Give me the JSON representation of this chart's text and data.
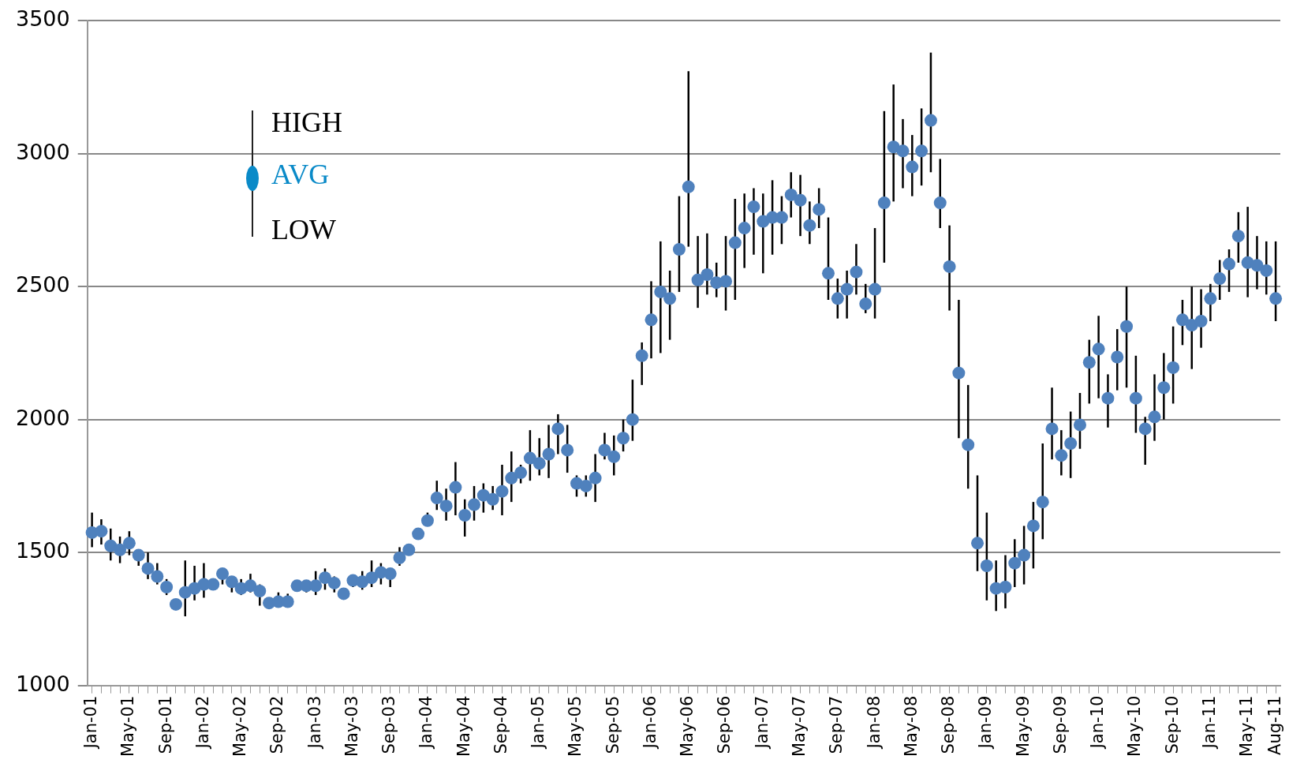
{
  "chart_data": {
    "type": "scatter",
    "categories": [
      "Jan-01",
      null,
      null,
      null,
      "May-01",
      null,
      null,
      null,
      "Sep-01",
      null,
      null,
      null,
      "Jan-02",
      null,
      null,
      null,
      "May-02",
      null,
      null,
      null,
      "Sep-02",
      null,
      null,
      null,
      "Jan-03",
      null,
      null,
      null,
      "May-03",
      null,
      null,
      null,
      "Sep-03",
      null,
      null,
      null,
      "Jan-04",
      null,
      null,
      null,
      "May-04",
      null,
      null,
      null,
      "Sep-04",
      null,
      null,
      null,
      "Jan-05",
      null,
      null,
      null,
      "May-05",
      null,
      null,
      null,
      "Sep-05",
      null,
      null,
      null,
      "Jan-06",
      null,
      null,
      null,
      "May-06",
      null,
      null,
      null,
      "Sep-06",
      null,
      null,
      null,
      "Jan-07",
      null,
      null,
      null,
      "May-07",
      null,
      null,
      null,
      "Sep-07",
      null,
      null,
      null,
      "Jan-08",
      null,
      null,
      null,
      "May-08",
      null,
      null,
      null,
      "Sep-08",
      null,
      null,
      null,
      "Jan-09",
      null,
      null,
      null,
      "May-09",
      null,
      null,
      null,
      "Sep-09",
      null,
      null,
      null,
      "Jan-10",
      null,
      null,
      null,
      "May-10",
      null,
      null,
      null,
      "Sep-10",
      null,
      null,
      null,
      "Jan-11",
      null,
      null,
      null,
      "May-11",
      null,
      null,
      "Aug-11"
    ],
    "series": [
      {
        "color": "#4f81bd",
        "values": [
          1575,
          1580,
          1525,
          1510,
          1535,
          1490,
          1440,
          1410,
          1370,
          1305,
          1350,
          1365,
          1380,
          1380,
          1420,
          1390,
          1365,
          1375,
          1355,
          1310,
          1315,
          1315,
          1375,
          1375,
          1375,
          1405,
          1385,
          1345,
          1395,
          1390,
          1405,
          1425,
          1420,
          1480,
          1510,
          1570,
          1620,
          1705,
          1675,
          1745,
          1640,
          1680,
          1715,
          1700,
          1730,
          1780,
          1800,
          1855,
          1835,
          1870,
          1965,
          1885,
          1760,
          1750,
          1780,
          1885,
          1860,
          1930,
          2000,
          2240,
          2375,
          2480,
          2455,
          2640,
          2875,
          2525,
          2545,
          2515,
          2520,
          2665,
          2720,
          2800,
          2745,
          2760,
          2760,
          2845,
          2825,
          2730,
          2790,
          2550,
          2455,
          2490,
          2555,
          2435,
          2490,
          2815,
          3025,
          3010,
          2950,
          3010,
          3125,
          2815,
          2575,
          2175,
          1905,
          1535,
          1450,
          1365,
          1370,
          1460,
          1490,
          1600,
          1690,
          1965,
          1865,
          1910,
          1980,
          2215,
          2265,
          2080,
          2235,
          2350,
          2080,
          1965,
          2010,
          2120,
          2195,
          2375,
          2355,
          2370,
          2455,
          2530,
          2585,
          2690,
          2590,
          2580,
          2560,
          2455
        ],
        "errors": [
          [
            1520,
            1650
          ],
          [
            1530,
            1625
          ],
          [
            1470,
            1590
          ],
          [
            1460,
            1560
          ],
          [
            1490,
            1580
          ],
          [
            1450,
            1500
          ],
          [
            1400,
            1500
          ],
          [
            1380,
            1460
          ],
          [
            1340,
            1400
          ],
          null,
          [
            1260,
            1470
          ],
          [
            1320,
            1450
          ],
          [
            1330,
            1460
          ],
          null,
          [
            1380,
            1440
          ],
          [
            1350,
            1410
          ],
          [
            1340,
            1400
          ],
          [
            1350,
            1420
          ],
          [
            1300,
            1380
          ],
          [
            1300,
            1320
          ],
          [
            1300,
            1350
          ],
          [
            1300,
            1345
          ],
          null,
          [
            1350,
            1390
          ],
          [
            1340,
            1430
          ],
          [
            1360,
            1440
          ],
          [
            1350,
            1410
          ],
          null,
          [
            1370,
            1410
          ],
          [
            1360,
            1430
          ],
          [
            1370,
            1470
          ],
          [
            1380,
            1460
          ],
          [
            1370,
            1440
          ],
          [
            1450,
            1520
          ],
          null,
          null,
          [
            1600,
            1650
          ],
          [
            1660,
            1770
          ],
          [
            1620,
            1740
          ],
          [
            1640,
            1840
          ],
          [
            1560,
            1700
          ],
          [
            1620,
            1750
          ],
          [
            1650,
            1760
          ],
          [
            1660,
            1750
          ],
          [
            1640,
            1830
          ],
          [
            1690,
            1880
          ],
          [
            1760,
            1830
          ],
          [
            1770,
            1960
          ],
          [
            1790,
            1930
          ],
          [
            1780,
            1980
          ],
          [
            1870,
            2020
          ],
          [
            1800,
            1980
          ],
          [
            1710,
            1790
          ],
          [
            1710,
            1790
          ],
          [
            1690,
            1870
          ],
          [
            1850,
            1950
          ],
          [
            1790,
            1940
          ],
          [
            1880,
            2000
          ],
          [
            1920,
            2150
          ],
          [
            2130,
            2290
          ],
          [
            2230,
            2520
          ],
          [
            2250,
            2670
          ],
          [
            2300,
            2560
          ],
          [
            2480,
            2840
          ],
          [
            2650,
            3310
          ],
          [
            2420,
            2690
          ],
          [
            2470,
            2700
          ],
          [
            2460,
            2590
          ],
          [
            2410,
            2690
          ],
          [
            2450,
            2830
          ],
          [
            2570,
            2850
          ],
          [
            2620,
            2870
          ],
          [
            2550,
            2850
          ],
          [
            2620,
            2900
          ],
          [
            2660,
            2840
          ],
          [
            2760,
            2930
          ],
          [
            2690,
            2920
          ],
          [
            2660,
            2820
          ],
          [
            2720,
            2870
          ],
          [
            2450,
            2760
          ],
          [
            2380,
            2530
          ],
          [
            2380,
            2560
          ],
          [
            2470,
            2660
          ],
          [
            2400,
            2510
          ],
          [
            2380,
            2720
          ],
          [
            2590,
            3160
          ],
          [
            2820,
            3260
          ],
          [
            2870,
            3130
          ],
          [
            2840,
            3070
          ],
          [
            2880,
            3170
          ],
          [
            2930,
            3380
          ],
          [
            2720,
            2980
          ],
          [
            2410,
            2730
          ],
          [
            1930,
            2450
          ],
          [
            1740,
            2130
          ],
          [
            1430,
            1790
          ],
          [
            1320,
            1650
          ],
          [
            1280,
            1470
          ],
          [
            1290,
            1490
          ],
          [
            1370,
            1550
          ],
          [
            1380,
            1600
          ],
          [
            1440,
            1690
          ],
          [
            1550,
            1910
          ],
          [
            1850,
            2120
          ],
          [
            1790,
            1960
          ],
          [
            1780,
            2030
          ],
          [
            1890,
            2100
          ],
          [
            2060,
            2300
          ],
          [
            2080,
            2390
          ],
          [
            1970,
            2170
          ],
          [
            2110,
            2340
          ],
          [
            2120,
            2500
          ],
          [
            1950,
            2240
          ],
          [
            1830,
            2010
          ],
          [
            1920,
            2170
          ],
          [
            2000,
            2250
          ],
          [
            2060,
            2350
          ],
          [
            2280,
            2450
          ],
          [
            2190,
            2500
          ],
          [
            2270,
            2490
          ],
          [
            2370,
            2510
          ],
          [
            2450,
            2600
          ],
          [
            2480,
            2640
          ],
          [
            2590,
            2780
          ],
          [
            2460,
            2800
          ],
          [
            2490,
            2690
          ],
          [
            2470,
            2670
          ],
          [
            2370,
            2670
          ]
        ]
      }
    ],
    "ylim": [
      1000,
      3500
    ],
    "yticks": [
      1000,
      1500,
      2000,
      2500,
      3000,
      3500
    ],
    "grid": "y",
    "marker": "circle",
    "annotations": [
      "HIGH",
      "AVG",
      "LOW"
    ]
  }
}
